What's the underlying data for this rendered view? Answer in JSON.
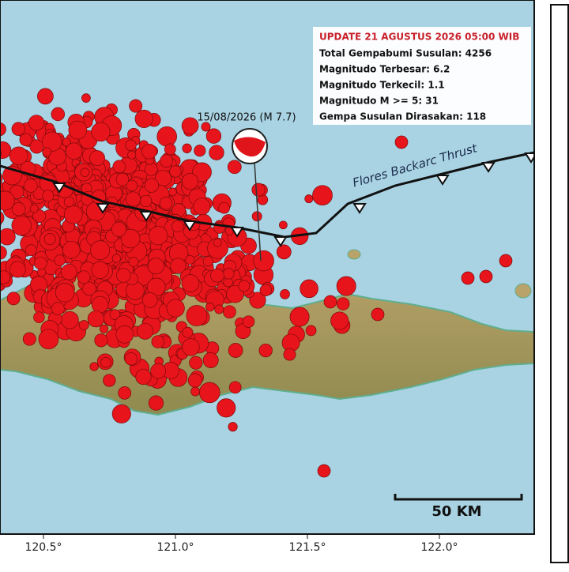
{
  "info_box": {
    "title": "UPDATE 21 AGUSTUS 2026 05:00 WIB",
    "lines": [
      "Total Gempabumi Susulan: 4256",
      "Magnitudo Terbesar: 6.2",
      "Magnitudo Terkecil: 1.1",
      "Magnitudo M >= 5: 31",
      "Gempa Susulan Dirasakan: 118"
    ]
  },
  "event_label": "15/08/2026 (M 7.7)",
  "fault_label": "Flores Backarc Thrust",
  "scale_bar": "50 KM",
  "longitude_labels": [
    "120.5°",
    "121.0°",
    "121.5°",
    "122.0°"
  ]
}
